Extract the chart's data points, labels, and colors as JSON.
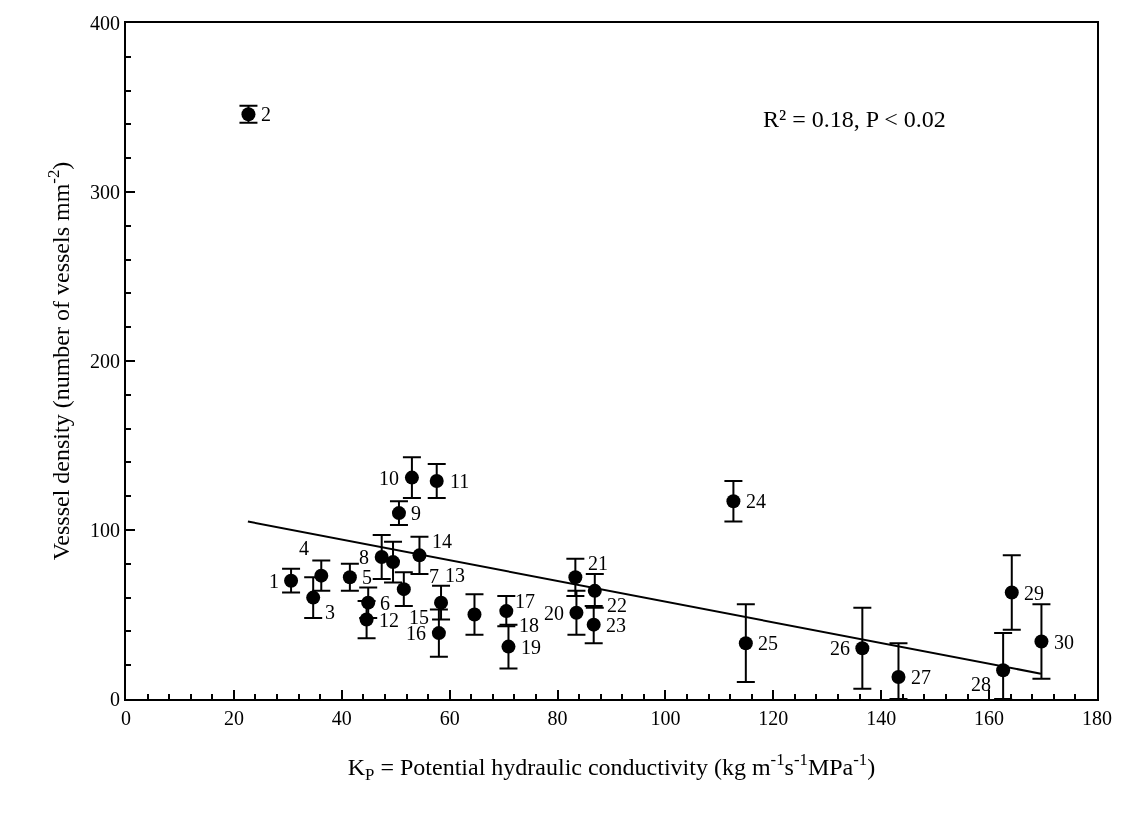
{
  "chart_data": {
    "type": "scatter",
    "xlabel": "K$_{P}$ = Potential hydraulic conductivity (kg m$^{-1}$s$^{-1}$MPa$^{-1}$)",
    "ylabel": "Vesssel density (number of vessels mm$^{-2}$)",
    "xlim": [
      0,
      180
    ],
    "xticks": [
      0,
      20,
      40,
      60,
      80,
      100,
      120,
      140,
      160,
      180
    ],
    "ylim": [
      0,
      400
    ],
    "yticks": [
      0,
      100,
      200,
      300,
      400
    ],
    "marker": "circle",
    "series": [
      {
        "color": "#000000",
        "x": [
          30.6,
          22.7,
          34.7,
          36.2,
          41.5,
          44.9,
          49.5,
          47.4,
          50.6,
          53.0,
          57.6,
          44.6,
          51.5,
          54.4,
          58.4,
          58.0,
          64.6,
          70.5,
          70.9,
          83.5,
          83.3,
          86.9,
          86.7,
          112.6,
          114.9,
          136.5,
          143.2,
          162.6,
          164.2,
          169.7
        ],
        "values": [
          70,
          346,
          60,
          73,
          72,
          57,
          81,
          84,
          110,
          131,
          129,
          47,
          65,
          85,
          57,
          39,
          50,
          52,
          31,
          51,
          72,
          64,
          44,
          117,
          33,
          30,
          13,
          17,
          63,
          34
        ],
        "errors": [
          7,
          5,
          12,
          9,
          8,
          9,
          12,
          13,
          7,
          12,
          10,
          11,
          10,
          11,
          10,
          14,
          12,
          9,
          13,
          13,
          11,
          10,
          11,
          12,
          23,
          24,
          [
            0,
            33
          ],
          [
            0,
            39
          ],
          22,
          22
        ]
      },
      {
        "type": "line",
        "color": "#000000",
        "marker": "none",
        "line_style": "solid",
        "x": [
          22.6,
          169.6
        ],
        "values": [
          105,
          15
        ]
      }
    ],
    "annotations": [
      "R² = 0.18, P < 0.02",
      {
        "text": "1",
        "x": 30.6,
        "y": 70
      },
      {
        "text": "2",
        "x": 22.7,
        "y": 346
      },
      {
        "text": "3",
        "x": 34.7,
        "y": 60
      },
      {
        "text": "4",
        "x": 36.2,
        "y": 73
      },
      {
        "text": "5",
        "x": 41.5,
        "y": 72
      },
      {
        "text": "6",
        "x": 44.9,
        "y": 57
      },
      {
        "text": "7",
        "x": 49.5,
        "y": 81
      },
      {
        "text": "8",
        "x": 47.4,
        "y": 84
      },
      {
        "text": "9",
        "x": 50.6,
        "y": 110
      },
      {
        "text": "10",
        "x": 53.0,
        "y": 131
      },
      {
        "text": "11",
        "x": 57.6,
        "y": 129
      },
      {
        "text": "12",
        "x": 44.6,
        "y": 47
      },
      {
        "text": "13",
        "x": 51.5,
        "y": 65
      },
      {
        "text": "14",
        "x": 54.4,
        "y": 85
      },
      {
        "text": "15",
        "x": 58.4,
        "y": 57
      },
      {
        "text": "16",
        "x": 58.0,
        "y": 39
      },
      {
        "text": "17",
        "x": 64.6,
        "y": 50
      },
      {
        "text": "18",
        "x": 70.5,
        "y": 52
      },
      {
        "text": "19",
        "x": 70.9,
        "y": 31
      },
      {
        "text": "20",
        "x": 83.5,
        "y": 51
      },
      {
        "text": "21",
        "x": 83.3,
        "y": 72
      },
      {
        "text": "22",
        "x": 86.9,
        "y": 64
      },
      {
        "text": "23",
        "x": 86.7,
        "y": 44
      },
      {
        "text": "24",
        "x": 112.6,
        "y": 117
      },
      {
        "text": "25",
        "x": 114.9,
        "y": 33
      },
      {
        "text": "26",
        "x": 136.5,
        "y": 30
      },
      {
        "text": "27",
        "x": 143.2,
        "y": 13
      },
      {
        "text": "28",
        "x": 162.6,
        "y": 17
      },
      {
        "text": "29",
        "x": 164.2,
        "y": 63
      },
      {
        "text": "30",
        "x": 169.7,
        "y": 34
      }
    ]
  }
}
